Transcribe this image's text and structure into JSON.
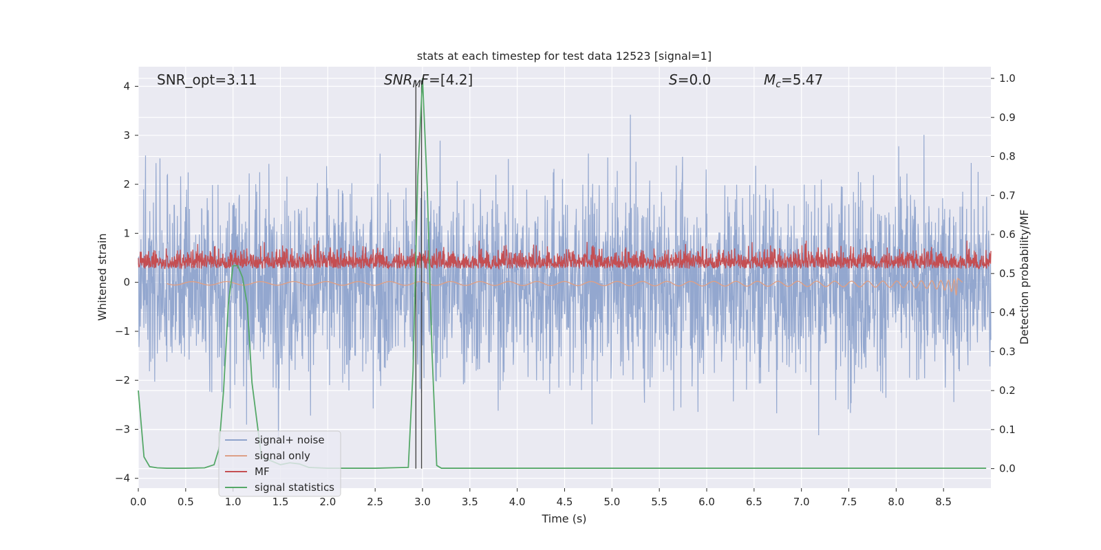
{
  "chart_data": {
    "type": "line",
    "title": "stats at each timestep for test data 12523 [signal=1]",
    "xlabel": "Time (s)",
    "ylabel": "Whitened strain",
    "y2label": "Detection probability/MF",
    "xlim": [
      0.0,
      9.0
    ],
    "ylim": [
      -4.2,
      4.4
    ],
    "y2lim": [
      -0.05,
      1.03
    ],
    "xticks": [
      "0.0",
      "0.5",
      "1.0",
      "1.5",
      "2.0",
      "2.5",
      "3.0",
      "3.5",
      "4.0",
      "4.5",
      "5.0",
      "5.5",
      "6.0",
      "6.5",
      "7.0",
      "7.5",
      "8.0",
      "8.5"
    ],
    "yticks": [
      "4",
      "3",
      "2",
      "1",
      "0",
      "−1",
      "−2",
      "−3",
      "−4"
    ],
    "y2ticks": [
      "1.0",
      "0.9",
      "0.8",
      "0.7",
      "0.6",
      "0.5",
      "0.4",
      "0.3",
      "0.2",
      "0.1",
      "0.0"
    ],
    "annotations": {
      "snr_opt": "SNR_opt=3.11",
      "snr_mf_base": "SNR",
      "snr_mf_sub": "M",
      "snr_mf_rest": "F=[4.2]",
      "s_var": "S",
      "s_rest": "=0.0",
      "mc_var": "M",
      "mc_sub": "c",
      "mc_rest": "=5.47"
    },
    "vlines": [
      2.93,
      2.99
    ],
    "colors": {
      "signal_noise": "#8ea3cc",
      "signal_only": "#dd9f86",
      "mf": "#c44e52",
      "stats": "#55a868",
      "background": "#eaeaf2",
      "vline": "#444444"
    },
    "series": [
      {
        "name": "signal+ noise",
        "kind": "noise",
        "sigma": 1.0
      },
      {
        "name": "signal only",
        "kind": "chirp",
        "t_merge": 8.65,
        "peak_amplitude": -0.4
      },
      {
        "name": "MF",
        "kind": "mf",
        "mean": 0.3
      },
      {
        "name": "signal statistics",
        "kind": "prob",
        "x": [
          0.0,
          0.06,
          0.12,
          0.2,
          0.3,
          0.5,
          0.7,
          0.8,
          0.85,
          0.9,
          0.95,
          1.0,
          1.05,
          1.1,
          1.15,
          1.2,
          1.3,
          1.5,
          1.6,
          1.7,
          1.8,
          2.0,
          2.5,
          2.85,
          2.9,
          2.95,
          3.0,
          3.05,
          3.1,
          3.15,
          3.2,
          3.5,
          4.0,
          5.0,
          6.0,
          7.0,
          8.0,
          8.6,
          8.95
        ],
        "y": [
          0.2,
          0.03,
          0.005,
          0.002,
          0.001,
          0.001,
          0.002,
          0.01,
          0.05,
          0.2,
          0.42,
          0.52,
          0.52,
          0.49,
          0.42,
          0.22,
          0.03,
          0.01,
          0.015,
          0.012,
          0.003,
          0.001,
          0.001,
          0.003,
          0.25,
          0.75,
          1.0,
          0.72,
          0.3,
          0.008,
          0.001,
          0.001,
          0.001,
          0.001,
          0.001,
          0.001,
          0.001,
          0.001,
          0.001
        ]
      }
    ],
    "legend_position": "lower-left"
  }
}
